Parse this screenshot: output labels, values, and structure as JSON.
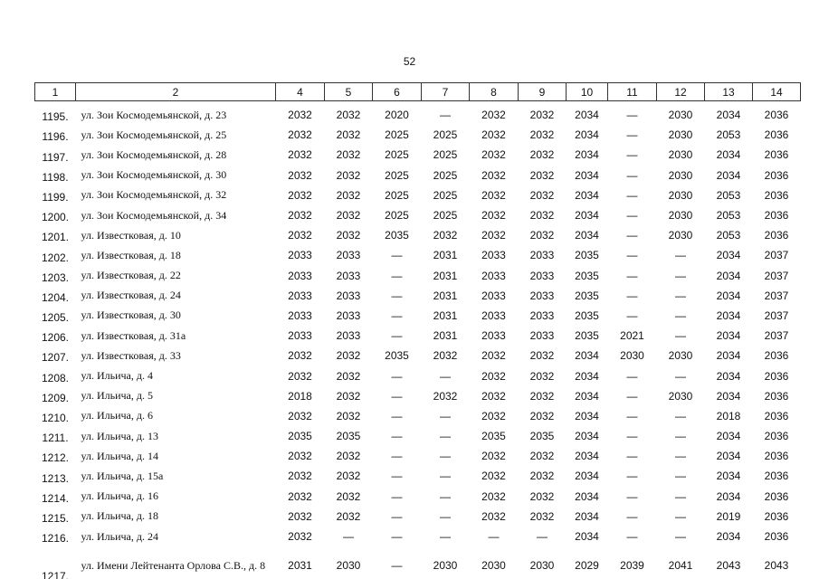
{
  "page_number": "52",
  "header": [
    "1",
    "2",
    "4",
    "5",
    "6",
    "7",
    "8",
    "9",
    "10",
    "11",
    "12",
    "13",
    "14"
  ],
  "rows": [
    {
      "num": "1195.",
      "address": "ул. Зои Космодемьянской, д. 23",
      "cells": [
        "2032",
        "2032",
        "2020",
        "—",
        "2032",
        "2032",
        "2034",
        "—",
        "2030",
        "2034",
        "2036"
      ]
    },
    {
      "num": "1196.",
      "address": "ул. Зои Космодемьянской, д. 25",
      "cells": [
        "2032",
        "2032",
        "2025",
        "2025",
        "2032",
        "2032",
        "2034",
        "—",
        "2030",
        "2053",
        "2036"
      ]
    },
    {
      "num": "1197.",
      "address": "ул. Зои Космодемьянской, д. 28",
      "cells": [
        "2032",
        "2032",
        "2025",
        "2025",
        "2032",
        "2032",
        "2034",
        "—",
        "2030",
        "2034",
        "2036"
      ]
    },
    {
      "num": "1198.",
      "address": "ул. Зои Космодемьянской, д. 30",
      "cells": [
        "2032",
        "2032",
        "2025",
        "2025",
        "2032",
        "2032",
        "2034",
        "—",
        "2030",
        "2034",
        "2036"
      ]
    },
    {
      "num": "1199.",
      "address": "ул. Зои Космодемьянской, д. 32",
      "cells": [
        "2032",
        "2032",
        "2025",
        "2025",
        "2032",
        "2032",
        "2034",
        "—",
        "2030",
        "2053",
        "2036"
      ]
    },
    {
      "num": "1200.",
      "address": "ул. Зои Космодемьянской, д. 34",
      "cells": [
        "2032",
        "2032",
        "2025",
        "2025",
        "2032",
        "2032",
        "2034",
        "—",
        "2030",
        "2053",
        "2036"
      ]
    },
    {
      "num": "1201.",
      "address": "ул. Известковая, д. 10",
      "cells": [
        "2032",
        "2032",
        "2035",
        "2032",
        "2032",
        "2032",
        "2034",
        "—",
        "2030",
        "2053",
        "2036"
      ]
    },
    {
      "num": "1202.",
      "address": "ул. Известковая, д. 18",
      "cells": [
        "2033",
        "2033",
        "—",
        "2031",
        "2033",
        "2033",
        "2035",
        "—",
        "—",
        "2034",
        "2037"
      ]
    },
    {
      "num": "1203.",
      "address": "ул. Известковая, д. 22",
      "cells": [
        "2033",
        "2033",
        "—",
        "2031",
        "2033",
        "2033",
        "2035",
        "—",
        "—",
        "2034",
        "2037"
      ]
    },
    {
      "num": "1204.",
      "address": "ул. Известковая, д. 24",
      "cells": [
        "2033",
        "2033",
        "—",
        "2031",
        "2033",
        "2033",
        "2035",
        "—",
        "—",
        "2034",
        "2037"
      ]
    },
    {
      "num": "1205.",
      "address": "ул. Известковая, д. 30",
      "cells": [
        "2033",
        "2033",
        "—",
        "2031",
        "2033",
        "2033",
        "2035",
        "—",
        "—",
        "2034",
        "2037"
      ]
    },
    {
      "num": "1206.",
      "address": "ул. Известковая, д. 31а",
      "cells": [
        "2033",
        "2033",
        "—",
        "2031",
        "2033",
        "2033",
        "2035",
        "2021",
        "—",
        "2034",
        "2037"
      ]
    },
    {
      "num": "1207.",
      "address": "ул. Известковая, д. 33",
      "cells": [
        "2032",
        "2032",
        "2035",
        "2032",
        "2032",
        "2032",
        "2034",
        "2030",
        "2030",
        "2034",
        "2036"
      ]
    },
    {
      "num": "1208.",
      "address": "ул. Ильича, д. 4",
      "cells": [
        "2032",
        "2032",
        "—",
        "—",
        "2032",
        "2032",
        "2034",
        "—",
        "—",
        "2034",
        "2036"
      ]
    },
    {
      "num": "1209.",
      "address": "ул. Ильича, д. 5",
      "cells": [
        "2018",
        "2032",
        "—",
        "2032",
        "2032",
        "2032",
        "2034",
        "—",
        "2030",
        "2034",
        "2036"
      ]
    },
    {
      "num": "1210.",
      "address": "ул. Ильича, д. 6",
      "cells": [
        "2032",
        "2032",
        "—",
        "—",
        "2032",
        "2032",
        "2034",
        "—",
        "—",
        "2018",
        "2036"
      ]
    },
    {
      "num": "1211.",
      "address": "ул. Ильича, д. 13",
      "cells": [
        "2035",
        "2035",
        "—",
        "—",
        "2035",
        "2035",
        "2034",
        "—",
        "—",
        "2034",
        "2036"
      ]
    },
    {
      "num": "1212.",
      "address": "ул. Ильича, д. 14",
      "cells": [
        "2032",
        "2032",
        "—",
        "—",
        "2032",
        "2032",
        "2034",
        "—",
        "—",
        "2034",
        "2036"
      ]
    },
    {
      "num": "1213.",
      "address": "ул. Ильича, д. 15а",
      "cells": [
        "2032",
        "2032",
        "—",
        "—",
        "2032",
        "2032",
        "2034",
        "—",
        "—",
        "2034",
        "2036"
      ]
    },
    {
      "num": "1214.",
      "address": "ул. Ильича, д. 16",
      "cells": [
        "2032",
        "2032",
        "—",
        "—",
        "2032",
        "2032",
        "2034",
        "—",
        "—",
        "2034",
        "2036"
      ]
    },
    {
      "num": "1215.",
      "address": "ул. Ильича, д. 18",
      "cells": [
        "2032",
        "2032",
        "—",
        "—",
        "2032",
        "2032",
        "2034",
        "—",
        "—",
        "2019",
        "2036"
      ]
    },
    {
      "num": "1216.",
      "address": "ул. Ильича, д. 24",
      "cells": [
        "2032",
        "—",
        "—",
        "—",
        "—",
        "—",
        "2034",
        "—",
        "—",
        "2034",
        "2036"
      ]
    },
    {
      "num": "1217.",
      "address": "ул. Имени Лейтенанта Орлова С.В., д. 8",
      "cells": [
        "2031",
        "2030",
        "—",
        "2030",
        "2030",
        "2030",
        "2029",
        "2039",
        "2041",
        "2043",
        "2043"
      ]
    }
  ]
}
